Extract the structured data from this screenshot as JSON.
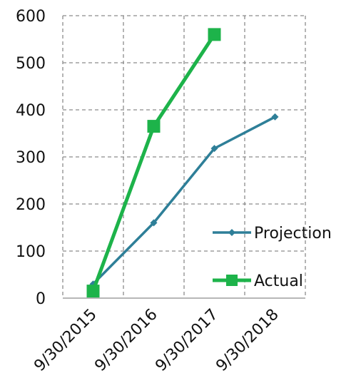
{
  "chart_data": {
    "type": "line",
    "x": [
      "9/30/2015",
      "9/30/2016",
      "9/30/2017",
      "9/30/2018"
    ],
    "ylim": [
      0,
      600
    ],
    "yticks": [
      0,
      100,
      200,
      300,
      400,
      500,
      600
    ],
    "grid": true,
    "legend_position": "right",
    "series": [
      {
        "name": "Projection",
        "values": [
          30,
          160,
          318,
          385
        ],
        "color": "#2e7f98",
        "marker": "diamond"
      },
      {
        "name": "Actual",
        "values": [
          15,
          365,
          560,
          null
        ],
        "color": "#1db34a",
        "marker": "square"
      }
    ]
  }
}
